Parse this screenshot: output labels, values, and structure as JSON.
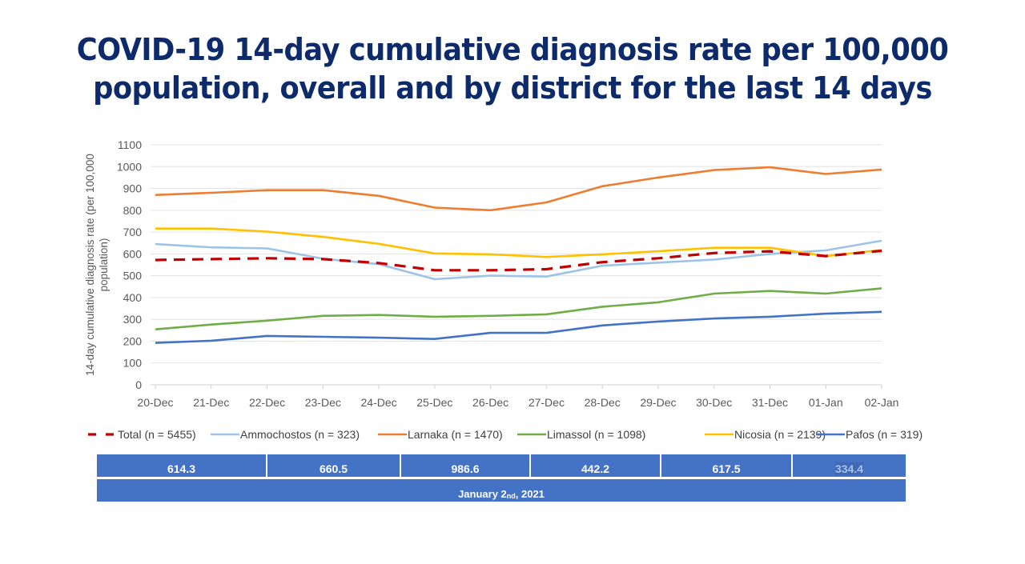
{
  "title": {
    "line1": "COVID-19 14-day cumulative diagnosis rate per 100,000",
    "line2": "population, overall and by district for the last 14 days"
  },
  "chart_data": {
    "type": "line",
    "title": "COVID-19 14-day cumulative diagnosis rate per 100,000 population, overall and by district for the last 14 days",
    "xlabel": "",
    "ylabel": "14-day cumulative diagnosis rate (per 100,000 population)",
    "ylabel_lines": [
      "14-day cumulative diagnosis rate (per 100,000",
      "population)"
    ],
    "ylim": [
      0,
      1100
    ],
    "yticks": [
      0,
      100,
      200,
      300,
      400,
      500,
      600,
      700,
      800,
      900,
      1000,
      1100
    ],
    "grid": true,
    "legend_position": "bottom",
    "categories": [
      "20-Dec",
      "21-Dec",
      "22-Dec",
      "23-Dec",
      "24-Dec",
      "25-Dec",
      "26-Dec",
      "27-Dec",
      "28-Dec",
      "29-Dec",
      "30-Dec",
      "31-Dec",
      "01-Jan",
      "02-Jan"
    ],
    "series": [
      {
        "name": "Total (n = 5455)",
        "color": "#c00000",
        "dashed": true,
        "values": [
          572,
          576,
          580,
          576,
          558,
          525,
          525,
          530,
          562,
          580,
          604,
          612,
          590,
          614.3
        ]
      },
      {
        "name": "Ammochostos (n = 323)",
        "color": "#9dc3e6",
        "dashed": false,
        "values": [
          645,
          630,
          625,
          578,
          553,
          484,
          500,
          496,
          546,
          560,
          574,
          600,
          616,
          660.5
        ]
      },
      {
        "name": "Larnaka (n = 1470)",
        "color": "#ed7d31",
        "dashed": false,
        "values": [
          870,
          880,
          892,
          892,
          866,
          812,
          800,
          836,
          910,
          950,
          984,
          997,
          966,
          986.6
        ]
      },
      {
        "name": "Limassol (n = 1098)",
        "color": "#70ad47",
        "dashed": false,
        "values": [
          254,
          276,
          294,
          316,
          320,
          312,
          316,
          323,
          358,
          378,
          418,
          430,
          418,
          442.2
        ]
      },
      {
        "name": "Nicosia (n = 2139)",
        "color": "#ffc000",
        "dashed": false,
        "values": [
          716,
          716,
          702,
          678,
          646,
          602,
          598,
          586,
          598,
          612,
          628,
          628,
          590,
          617.5
        ]
      },
      {
        "name": "Pafos (n = 319)",
        "color": "#4472c4",
        "dashed": false,
        "values": [
          192,
          202,
          224,
          220,
          216,
          210,
          238,
          238,
          272,
          290,
          304,
          312,
          326,
          334.4
        ]
      }
    ]
  },
  "summary_table": {
    "values": [
      "614.3",
      "660.5",
      "986.6",
      "442.2",
      "617.5",
      "334.4"
    ],
    "date_main": "January 2",
    "date_sup": "nd",
    "date_year": ", 2021",
    "fill_color": "#4472c4"
  }
}
